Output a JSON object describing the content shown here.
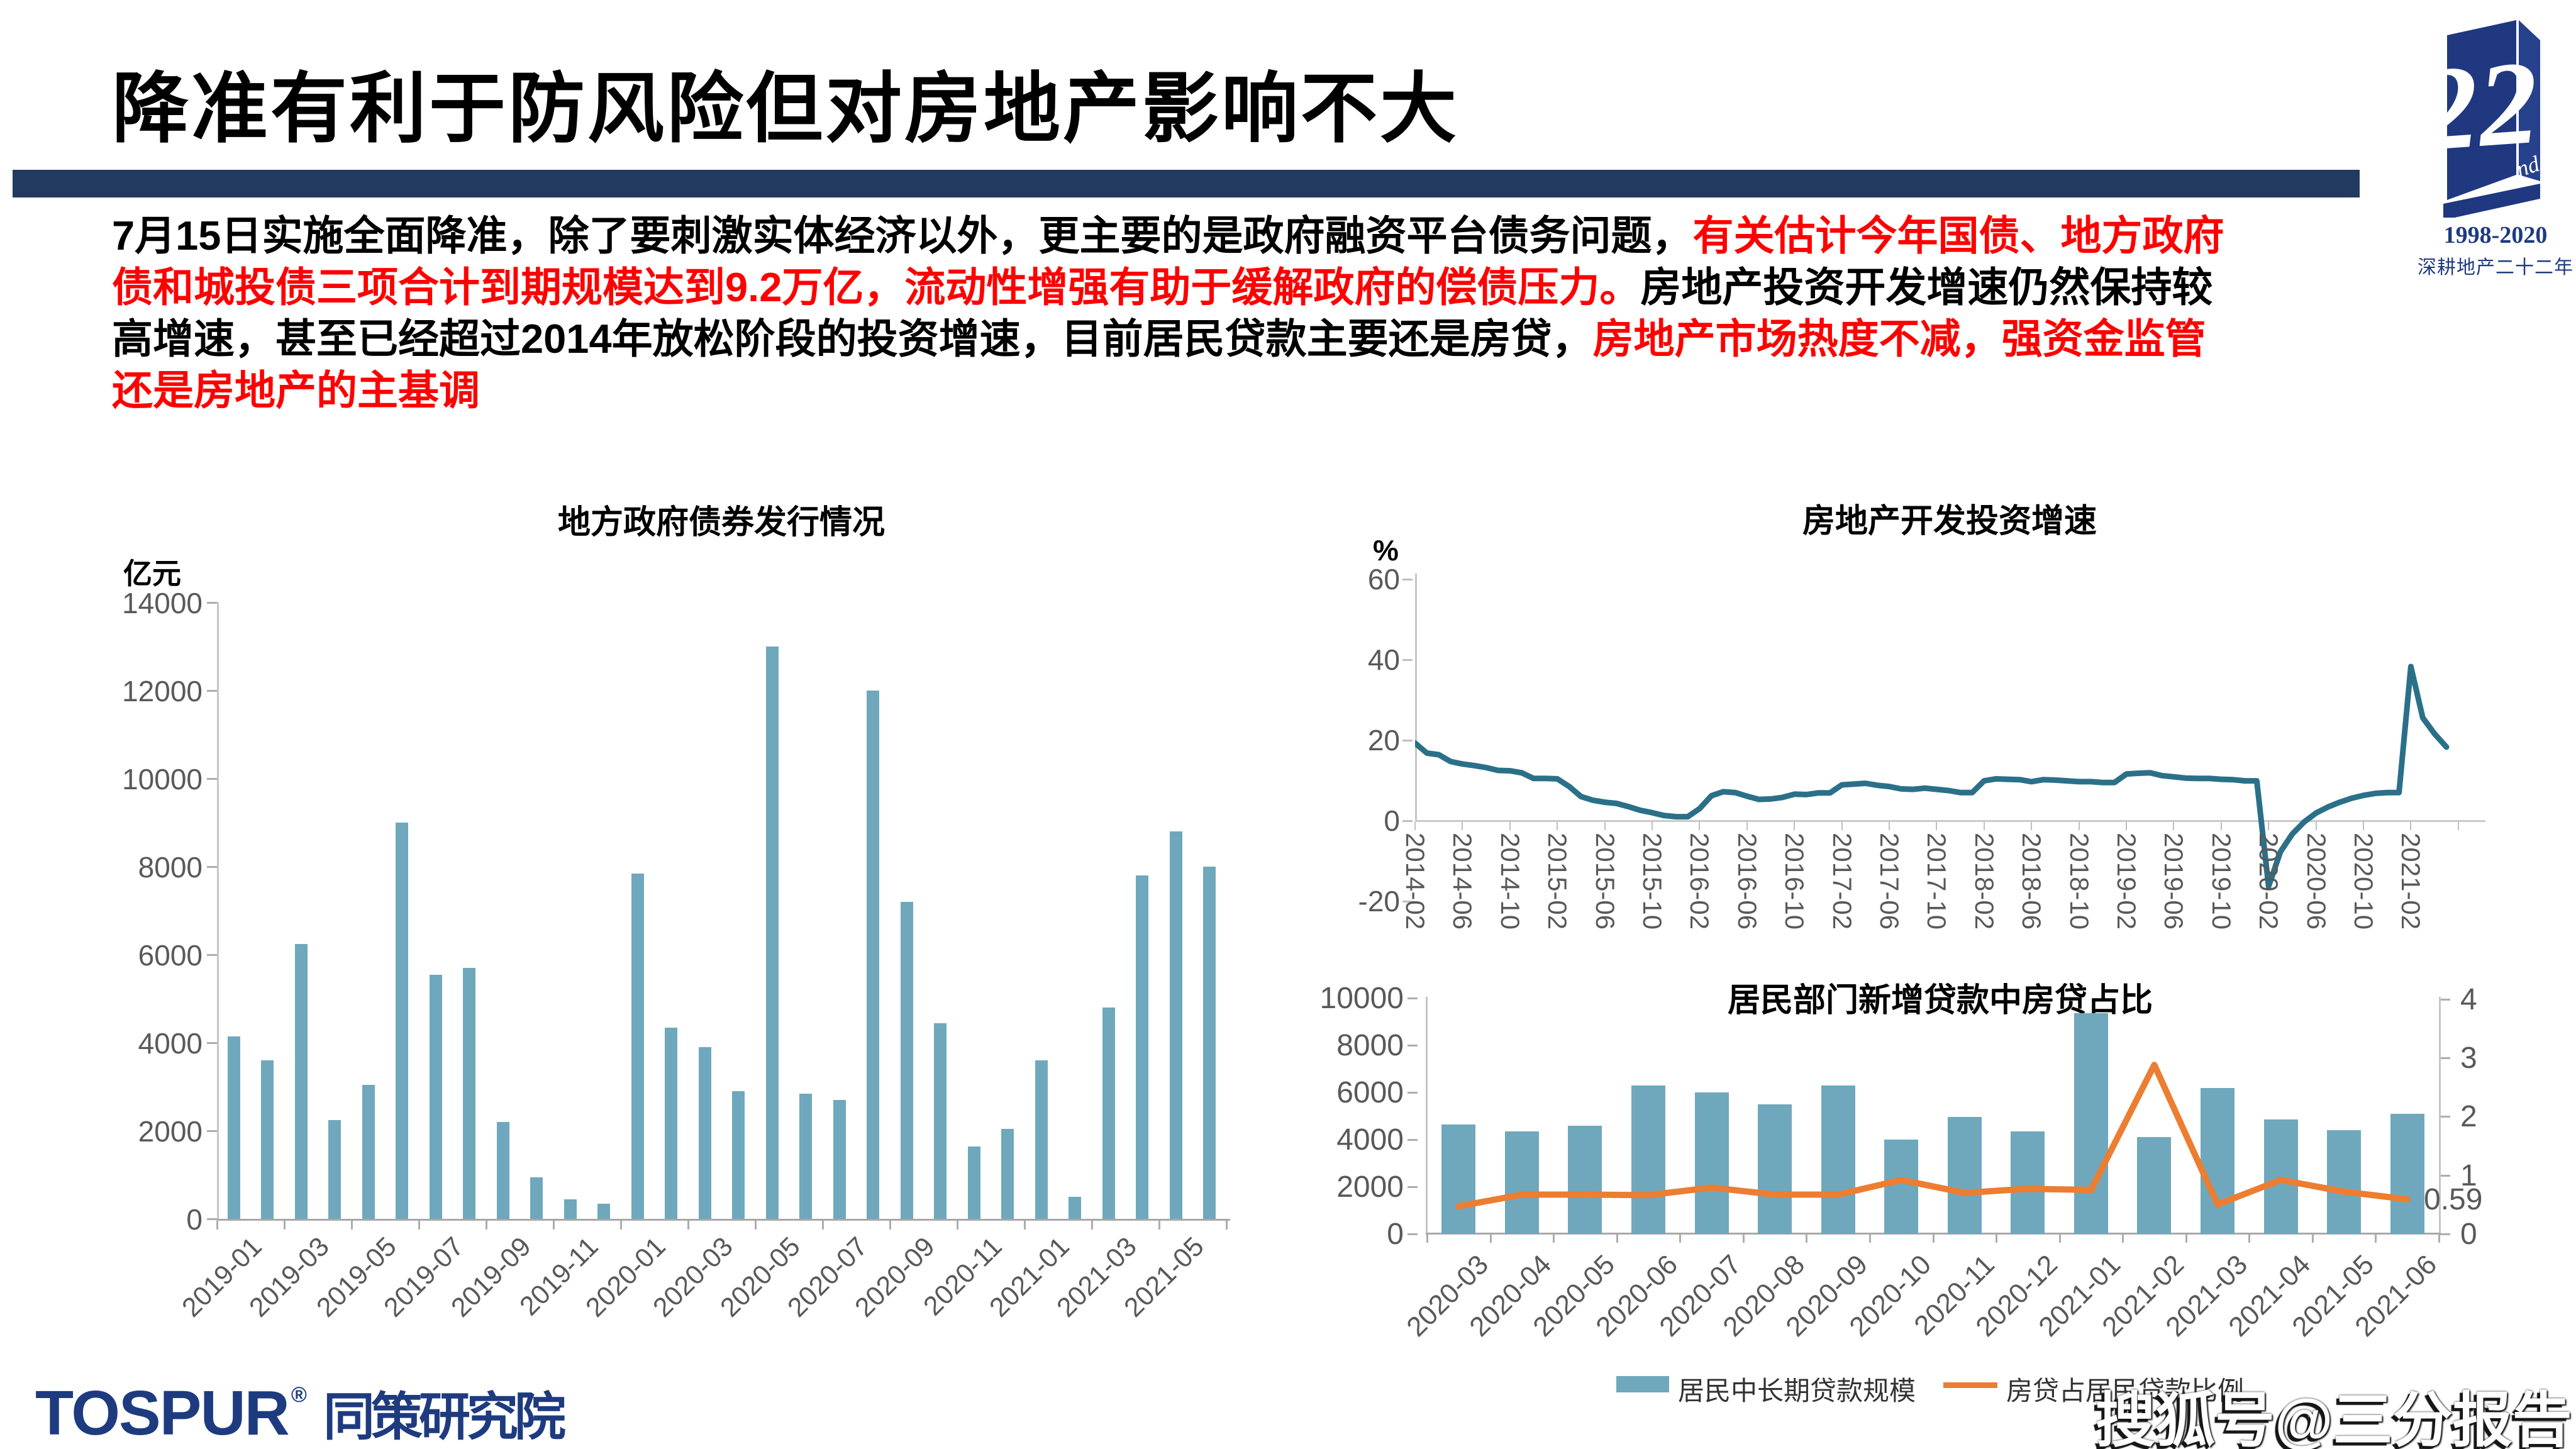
{
  "slide": {
    "title": "降准有利于防风险但对房地产影响不大",
    "accent_color": "#233A60",
    "intro": {
      "l1_black": "7月15日实施全面降准，除了要刺激实体经济以外，更主要的是政府融资平台债务问题，",
      "l1_red": "有关估计今年国债、地方政府",
      "l2_red": "债和城投债三项合计到期规模达到9.2万亿，流动性增强有助于缓解政府的偿债压力。",
      "l2_black": "房地产投资开发增速仍然保持较",
      "l3_black": "高增速，甚至已经超过2014年放松阶段的投资增速，目前居民贷款主要还是房贷，",
      "l3_red": "房地产市场热度不减，强资金监管",
      "l4_red": "还是房地产的主基调"
    },
    "anniversary_badge": {
      "number": "22",
      "suffix": "nd",
      "years": "1998-2020",
      "tagline": "深耕地产二十二年"
    },
    "footer": {
      "brand_en": "TOSPUR",
      "brand_reg": "®",
      "brand_cn": "同策研究院",
      "watermark": "搜狐号@三分报告"
    }
  },
  "chart_data": [
    {
      "id": "bond-issuance",
      "type": "bar",
      "title": "地方政府债券发行情况",
      "unit": "亿元",
      "bar_color": "#6FA8BC",
      "ylim": [
        0,
        14000
      ],
      "y_ticks": [
        14000,
        12000,
        10000,
        8000,
        6000,
        4000,
        2000,
        0
      ],
      "categories": [
        "2019-01",
        "2019-02",
        "2019-03",
        "2019-04",
        "2019-05",
        "2019-06",
        "2019-07",
        "2019-08",
        "2019-09",
        "2019-10",
        "2019-11",
        "2019-12",
        "2020-01",
        "2020-02",
        "2020-03",
        "2020-04",
        "2020-05",
        "2020-06",
        "2020-07",
        "2020-08",
        "2020-09",
        "2020-10",
        "2020-11",
        "2020-12",
        "2021-01",
        "2021-02",
        "2021-03",
        "2021-04",
        "2021-05",
        "2021-06"
      ],
      "values": [
        4150,
        3600,
        6250,
        2250,
        3050,
        9000,
        5550,
        5700,
        2200,
        950,
        450,
        350,
        7850,
        4350,
        3900,
        2900,
        13000,
        2850,
        2700,
        12000,
        7200,
        4450,
        1650,
        2050,
        3600,
        500,
        4800,
        7800,
        8800,
        8000
      ],
      "x_tick_labels": [
        "2019-01",
        "2019-03",
        "2019-05",
        "2019-07",
        "2019-09",
        "2019-11",
        "2020-01",
        "2020-03",
        "2020-05",
        "2020-07",
        "2020-09",
        "2020-11",
        "2021-01",
        "2021-03",
        "2021-05"
      ]
    },
    {
      "id": "re-investment-growth",
      "type": "line",
      "title": "房地产开发投资增速",
      "unit": "%",
      "line_color": "#2B7089",
      "ylim": [
        -20,
        60
      ],
      "y_ticks": [
        60,
        40,
        20,
        0,
        -20
      ],
      "x": [
        "2014-02",
        "2014-03",
        "2014-04",
        "2014-05",
        "2014-06",
        "2014-07",
        "2014-08",
        "2014-09",
        "2014-10",
        "2014-11",
        "2014-12",
        "2015-01",
        "2015-02",
        "2015-03",
        "2015-04",
        "2015-05",
        "2015-06",
        "2015-07",
        "2015-08",
        "2015-09",
        "2015-10",
        "2015-11",
        "2015-12",
        "2016-01",
        "2016-02",
        "2016-03",
        "2016-04",
        "2016-05",
        "2016-06",
        "2016-07",
        "2016-08",
        "2016-09",
        "2016-10",
        "2016-11",
        "2016-12",
        "2017-01",
        "2017-02",
        "2017-03",
        "2017-04",
        "2017-05",
        "2017-06",
        "2017-07",
        "2017-08",
        "2017-09",
        "2017-10",
        "2017-11",
        "2017-12",
        "2018-01",
        "2018-02",
        "2018-03",
        "2018-04",
        "2018-05",
        "2018-06",
        "2018-07",
        "2018-08",
        "2018-09",
        "2018-10",
        "2018-11",
        "2018-12",
        "2019-01",
        "2019-02",
        "2019-03",
        "2019-04",
        "2019-05",
        "2019-06",
        "2019-07",
        "2019-08",
        "2019-09",
        "2019-10",
        "2019-11",
        "2019-12",
        "2020-01",
        "2020-02",
        "2020-03",
        "2020-04",
        "2020-05",
        "2020-06",
        "2020-07",
        "2020-08",
        "2020-09",
        "2020-10",
        "2020-11",
        "2020-12",
        "2021-01",
        "2021-02",
        "2021-03",
        "2021-04",
        "2021-05"
      ],
      "values": [
        19.3,
        16.8,
        16.4,
        14.7,
        14.1,
        13.7,
        13.2,
        12.5,
        12.4,
        11.9,
        10.5,
        10.5,
        10.4,
        8.5,
        6.0,
        5.1,
        4.6,
        4.3,
        3.5,
        2.6,
        2.0,
        1.3,
        1.0,
        1.0,
        3.0,
        6.2,
        7.2,
        7.0,
        6.1,
        5.3,
        5.4,
        5.8,
        6.6,
        6.5,
        6.9,
        6.9,
        8.9,
        9.1,
        9.3,
        8.8,
        8.5,
        7.9,
        7.8,
        8.1,
        7.8,
        7.5,
        7.0,
        7.0,
        9.9,
        10.4,
        10.3,
        10.2,
        9.7,
        10.2,
        10.1,
        9.9,
        9.7,
        9.7,
        9.5,
        9.5,
        11.6,
        11.8,
        11.9,
        11.2,
        10.9,
        10.6,
        10.5,
        10.5,
        10.3,
        10.2,
        9.9,
        9.9,
        -16.3,
        -7.7,
        -3.3,
        -0.3,
        1.9,
        3.4,
        4.6,
        5.6,
        6.3,
        6.8,
        7.0,
        7.0,
        38.3,
        25.6,
        21.6,
        18.3
      ],
      "x_tick_labels": [
        "2014-02",
        "2014-06",
        "2014-10",
        "2015-02",
        "2015-06",
        "2015-10",
        "2016-02",
        "2016-06",
        "2016-10",
        "2017-02",
        "2017-06",
        "2017-10",
        "2018-02",
        "2018-06",
        "2018-10",
        "2019-02",
        "2019-06",
        "2019-10",
        "2020-02",
        "2020-06",
        "2020-10",
        "2021-02"
      ]
    },
    {
      "id": "mortgage-share",
      "type": "combo",
      "title": "居民部门新增贷款中房贷占比",
      "categories": [
        "2020-03",
        "2020-04",
        "2020-05",
        "2020-06",
        "2020-07",
        "2020-08",
        "2020-09",
        "2020-10",
        "2020-11",
        "2020-12",
        "2021-01",
        "2021-02",
        "2021-03",
        "2021-04",
        "2021-05",
        "2021-06"
      ],
      "series": [
        {
          "name": "居民中长期贷款规模",
          "type": "bar",
          "axis": "left",
          "color": "#6FA8BC",
          "values": [
            4650,
            4350,
            4600,
            6300,
            6000,
            5500,
            6300,
            4000,
            4950,
            4350,
            9350,
            4100,
            6200,
            4850,
            4400,
            5100
          ]
        },
        {
          "name": "房贷占居民贷款比例",
          "type": "line",
          "axis": "right",
          "color": "#ED7D31",
          "values": [
            0.47,
            0.67,
            0.67,
            0.66,
            0.79,
            0.67,
            0.67,
            0.92,
            0.7,
            0.77,
            0.75,
            2.88,
            0.5,
            0.92,
            0.72,
            0.59
          ]
        }
      ],
      "left_ylim": [
        0,
        10000
      ],
      "left_y_ticks": [
        10000,
        8000,
        6000,
        4000,
        2000,
        0
      ],
      "right_ylim": [
        0,
        4
      ],
      "right_y_ticks": [
        4,
        3,
        2,
        1,
        0
      ],
      "annotation": {
        "text": "0.59",
        "value": 0.59
      },
      "legend_position": "bottom"
    }
  ]
}
